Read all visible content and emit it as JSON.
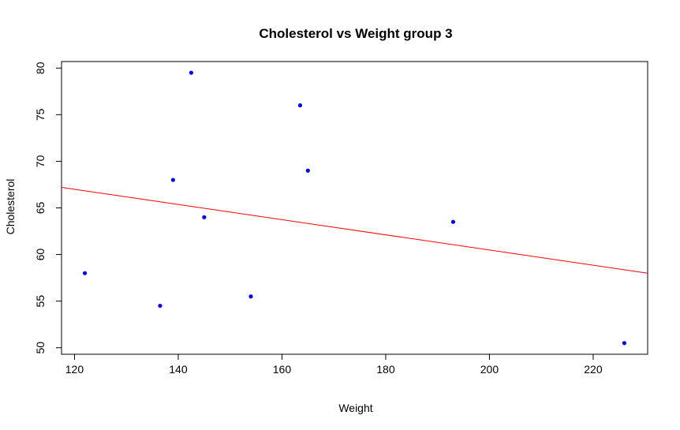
{
  "chart_data": {
    "type": "scatter",
    "title": "Cholesterol vs Weight group 3",
    "xlabel": "Weight",
    "ylabel": "Cholesterol",
    "xlim": [
      117.5,
      230.5
    ],
    "ylim": [
      49.3,
      80.7
    ],
    "xticks": [
      120,
      140,
      160,
      180,
      200,
      220
    ],
    "yticks": [
      50,
      55,
      60,
      65,
      70,
      75,
      80
    ],
    "grid": false,
    "point_color": "#0000ff",
    "line_color": "#ff0000",
    "points": [
      {
        "x": 122,
        "y": 58
      },
      {
        "x": 136.5,
        "y": 54.5
      },
      {
        "x": 139,
        "y": 68
      },
      {
        "x": 142.5,
        "y": 79.5
      },
      {
        "x": 145,
        "y": 64
      },
      {
        "x": 154,
        "y": 55.5
      },
      {
        "x": 163.5,
        "y": 76
      },
      {
        "x": 165,
        "y": 69
      },
      {
        "x": 193,
        "y": 63.5
      },
      {
        "x": 226,
        "y": 50.5
      }
    ],
    "regression_line": {
      "x": [
        117.5,
        230.5
      ],
      "y": [
        67.2,
        58.0
      ]
    }
  }
}
